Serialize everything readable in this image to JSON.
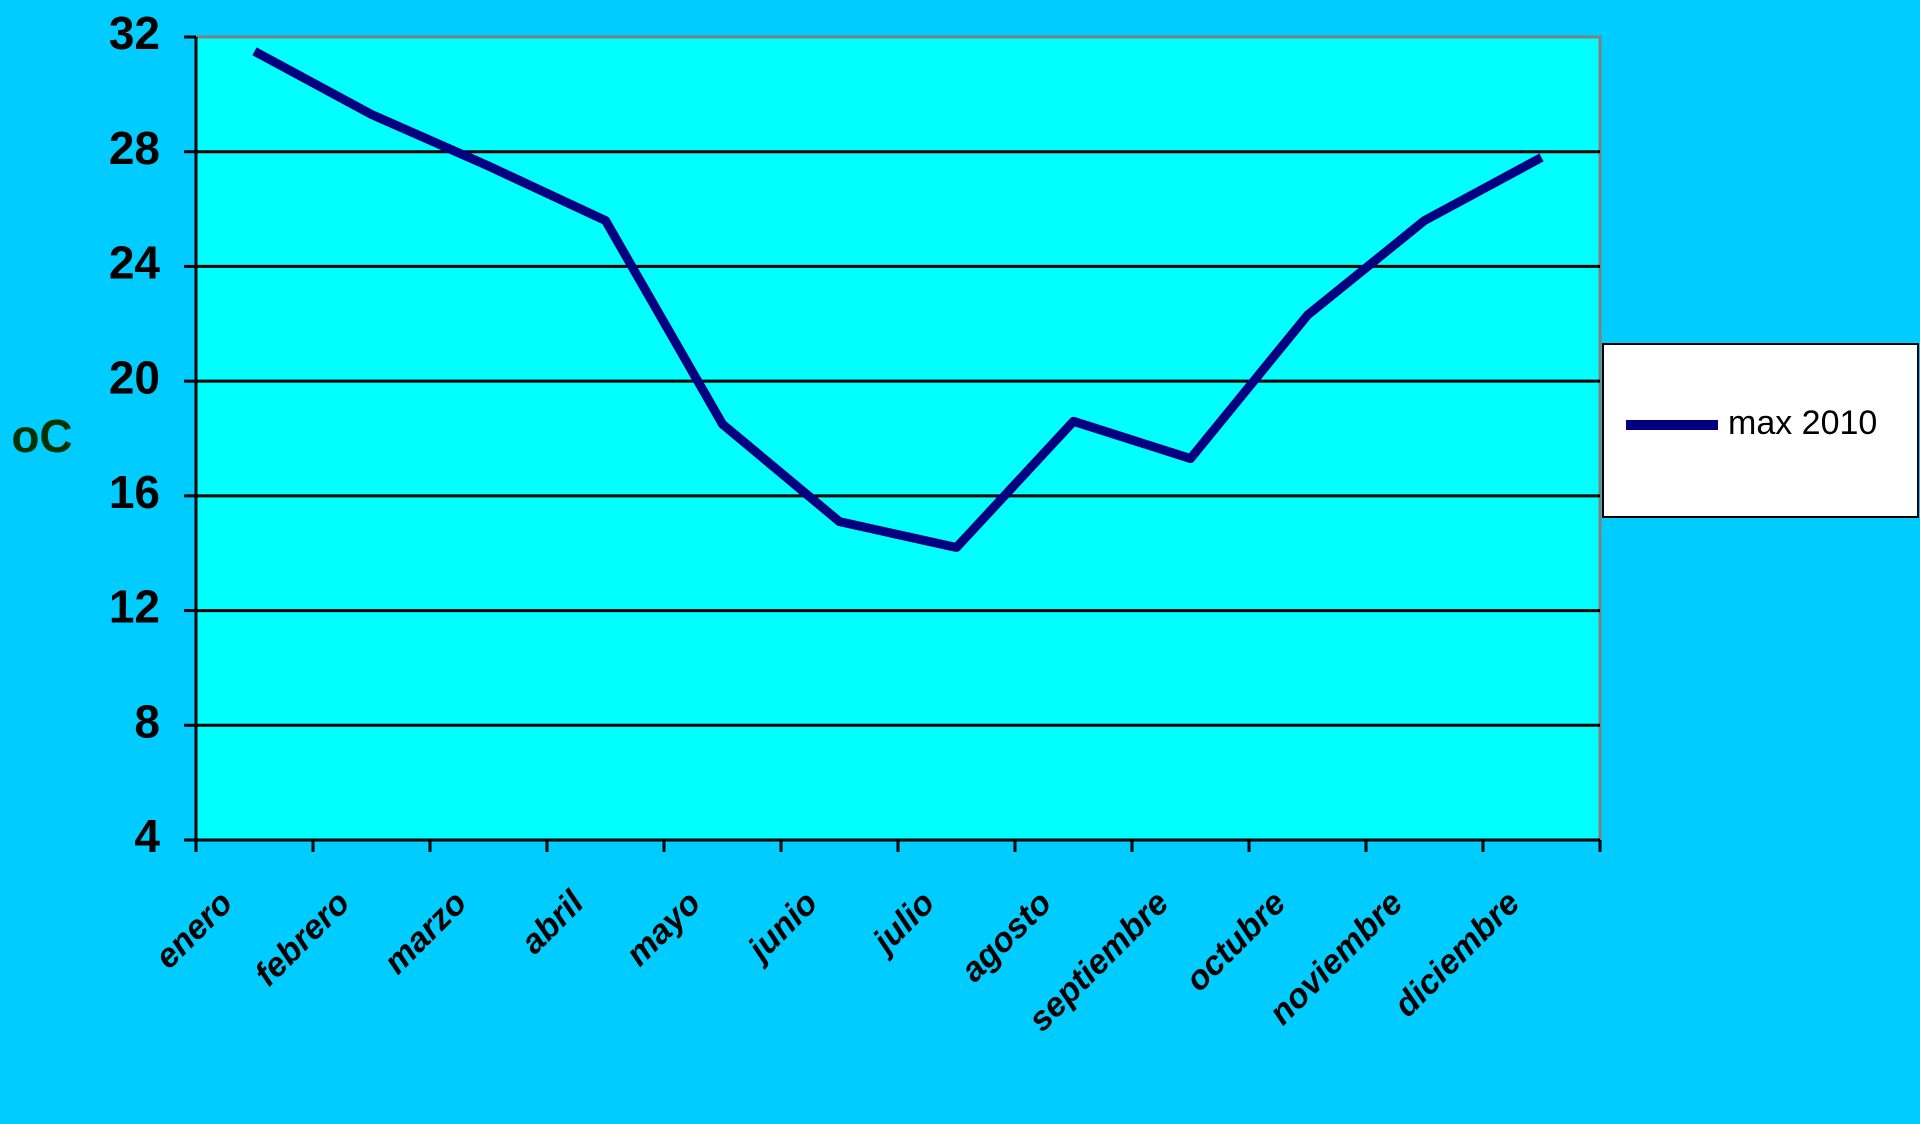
{
  "chart_data": {
    "type": "line",
    "y_label": "oC",
    "categories": [
      "enero",
      "febrero",
      "marzo",
      "abril",
      "mayo",
      "junio",
      "julio",
      "agosto",
      "septiembre",
      "octubre",
      "noviembre",
      "diciembre"
    ],
    "series": [
      {
        "name": "max 2010",
        "color": "#000080",
        "values": [
          31.5,
          29.3,
          27.5,
          25.6,
          18.5,
          15.1,
          14.2,
          18.6,
          17.3,
          22.3,
          25.6,
          27.8
        ]
      }
    ],
    "ylim": [
      4,
      32
    ],
    "yticks": [
      4,
      8,
      12,
      16,
      20,
      24,
      28,
      32
    ],
    "grid": true,
    "legend": "right",
    "background": "#00ccff",
    "plot_background": "#00ffff"
  }
}
